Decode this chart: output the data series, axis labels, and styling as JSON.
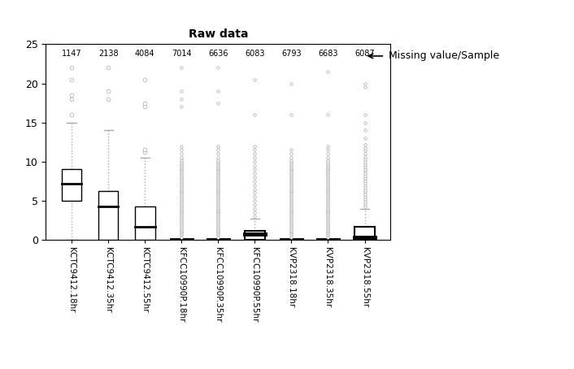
{
  "title": "Raw data",
  "categories": [
    "KCTC9412.18hr",
    "KCTC9412.35hr",
    "KCTC9412.55hr",
    "KFCC10990P.18hr",
    "KFCC10990P.35hr",
    "KFCC10990P.55hr",
    "KVP2318.18hr",
    "KVP2318.35hr",
    "KVP2318.55hr"
  ],
  "missing_values": [
    1147,
    2138,
    4084,
    7014,
    6636,
    6083,
    6793,
    6683,
    6087
  ],
  "annotation_text": "Missing value/Sample",
  "ylim": [
    0,
    25
  ],
  "yticks": [
    0,
    5,
    10,
    15,
    20,
    25
  ],
  "background_color": "#ffffff",
  "box_facecolor": "white",
  "box_edgecolor": "black",
  "flier_color_thin": "#aaaaaa",
  "flier_color_thick": "#aaaaaa",
  "boxes": [
    {
      "q1": 5.0,
      "median": 7.2,
      "q3": 9.0,
      "whislo": 0.0,
      "whishi": 15.0,
      "thick": false,
      "fliers_high": [
        16.0,
        18.0,
        18.5,
        20.5,
        22.0
      ]
    },
    {
      "q1": 0.0,
      "median": 4.3,
      "q3": 6.2,
      "whislo": 0.0,
      "whishi": 14.0,
      "thick": false,
      "fliers_high": [
        18.0,
        19.0,
        22.0
      ]
    },
    {
      "q1": 0.0,
      "median": 1.7,
      "q3": 4.3,
      "whislo": 0.0,
      "whishi": 10.5,
      "thick": false,
      "fliers_high": [
        11.2,
        11.5,
        17.0,
        17.5,
        20.5
      ]
    },
    {
      "q1": 0.0,
      "median": 0.0,
      "q3": 0.0,
      "whislo": 0.0,
      "whishi": 0.0,
      "thick": true,
      "fliers_high": [
        0.3,
        0.6,
        0.8,
        1.0,
        1.2,
        1.4,
        1.6,
        1.8,
        2.0,
        2.2,
        2.4,
        2.6,
        2.8,
        3.0,
        3.2,
        3.4,
        3.6,
        3.8,
        4.0,
        4.2,
        4.4,
        4.6,
        4.8,
        5.0,
        5.2,
        5.4,
        5.6,
        5.8,
        6.0,
        6.2,
        6.4,
        6.6,
        6.8,
        7.0,
        7.2,
        7.4,
        7.6,
        7.8,
        8.0,
        8.2,
        8.4,
        8.6,
        8.8,
        9.0,
        9.2,
        9.4,
        9.6,
        9.8,
        10.0,
        10.2,
        10.5,
        11.0,
        11.5,
        12.0,
        17.0,
        18.0,
        19.0,
        22.0
      ]
    },
    {
      "q1": 0.0,
      "median": 0.0,
      "q3": 0.0,
      "whislo": 0.0,
      "whishi": 0.0,
      "thick": true,
      "fliers_high": [
        0.3,
        0.6,
        0.8,
        1.0,
        1.2,
        1.4,
        1.6,
        1.8,
        2.0,
        2.2,
        2.4,
        2.6,
        2.8,
        3.0,
        3.2,
        3.4,
        3.6,
        3.8,
        4.0,
        4.2,
        4.4,
        4.6,
        4.8,
        5.0,
        5.2,
        5.4,
        5.6,
        5.8,
        6.0,
        6.2,
        6.4,
        6.6,
        6.8,
        7.0,
        7.2,
        7.4,
        7.6,
        7.8,
        8.0,
        8.2,
        8.4,
        8.6,
        8.8,
        9.0,
        9.2,
        9.4,
        9.6,
        9.8,
        10.0,
        10.2,
        10.5,
        11.0,
        11.5,
        12.0,
        17.5,
        19.0,
        22.0
      ]
    },
    {
      "q1": 0.0,
      "median": 0.7,
      "q3": 1.2,
      "whislo": 0.0,
      "whishi": 2.7,
      "thick": true,
      "fliers_high": [
        3.0,
        3.5,
        4.0,
        4.5,
        5.0,
        5.5,
        6.0,
        6.5,
        7.0,
        7.5,
        8.0,
        8.5,
        9.0,
        9.5,
        10.0,
        10.5,
        11.0,
        11.5,
        12.0,
        16.0,
        20.5
      ]
    },
    {
      "q1": 0.0,
      "median": 0.0,
      "q3": 0.0,
      "whislo": 0.0,
      "whishi": 0.0,
      "thick": true,
      "fliers_high": [
        0.3,
        0.6,
        0.8,
        1.0,
        1.2,
        1.4,
        1.6,
        1.8,
        2.0,
        2.2,
        2.4,
        2.6,
        2.8,
        3.0,
        3.2,
        3.4,
        3.6,
        3.8,
        4.0,
        4.2,
        4.4,
        4.6,
        4.8,
        5.0,
        5.2,
        5.4,
        5.6,
        5.8,
        6.0,
        6.2,
        6.4,
        6.6,
        6.8,
        7.0,
        7.2,
        7.4,
        7.6,
        7.8,
        8.0,
        8.2,
        8.4,
        8.6,
        8.8,
        9.0,
        9.2,
        9.4,
        9.6,
        9.8,
        10.0,
        10.2,
        10.5,
        11.0,
        11.5,
        16.0,
        20.0
      ]
    },
    {
      "q1": 0.0,
      "median": 0.0,
      "q3": 0.0,
      "whislo": 0.0,
      "whishi": 0.0,
      "thick": true,
      "fliers_high": [
        0.3,
        0.6,
        0.8,
        1.0,
        1.2,
        1.4,
        1.6,
        1.8,
        2.0,
        2.2,
        2.4,
        2.6,
        2.8,
        3.0,
        3.2,
        3.4,
        3.6,
        3.8,
        4.0,
        4.2,
        4.4,
        4.6,
        4.8,
        5.0,
        5.2,
        5.4,
        5.6,
        5.8,
        6.0,
        6.2,
        6.4,
        6.6,
        6.8,
        7.0,
        7.2,
        7.4,
        7.6,
        7.8,
        8.0,
        8.2,
        8.4,
        8.6,
        8.8,
        9.0,
        9.2,
        9.4,
        9.6,
        9.8,
        10.0,
        10.2,
        10.5,
        11.0,
        11.5,
        12.0,
        16.0,
        21.5
      ]
    },
    {
      "q1": 0.0,
      "median": 0.3,
      "q3": 1.7,
      "whislo": 0.0,
      "whishi": 4.0,
      "thick": true,
      "fliers_high": [
        4.3,
        4.6,
        4.9,
        5.2,
        5.5,
        5.8,
        6.1,
        6.4,
        6.7,
        7.0,
        7.3,
        7.6,
        7.9,
        8.2,
        8.5,
        8.8,
        9.1,
        9.4,
        9.7,
        10.0,
        10.3,
        10.6,
        11.0,
        11.4,
        11.8,
        12.2,
        13.0,
        14.0,
        15.0,
        16.0,
        19.5,
        20.0
      ]
    }
  ],
  "figsize": [
    7.06,
    4.54
  ],
  "dpi": 100
}
